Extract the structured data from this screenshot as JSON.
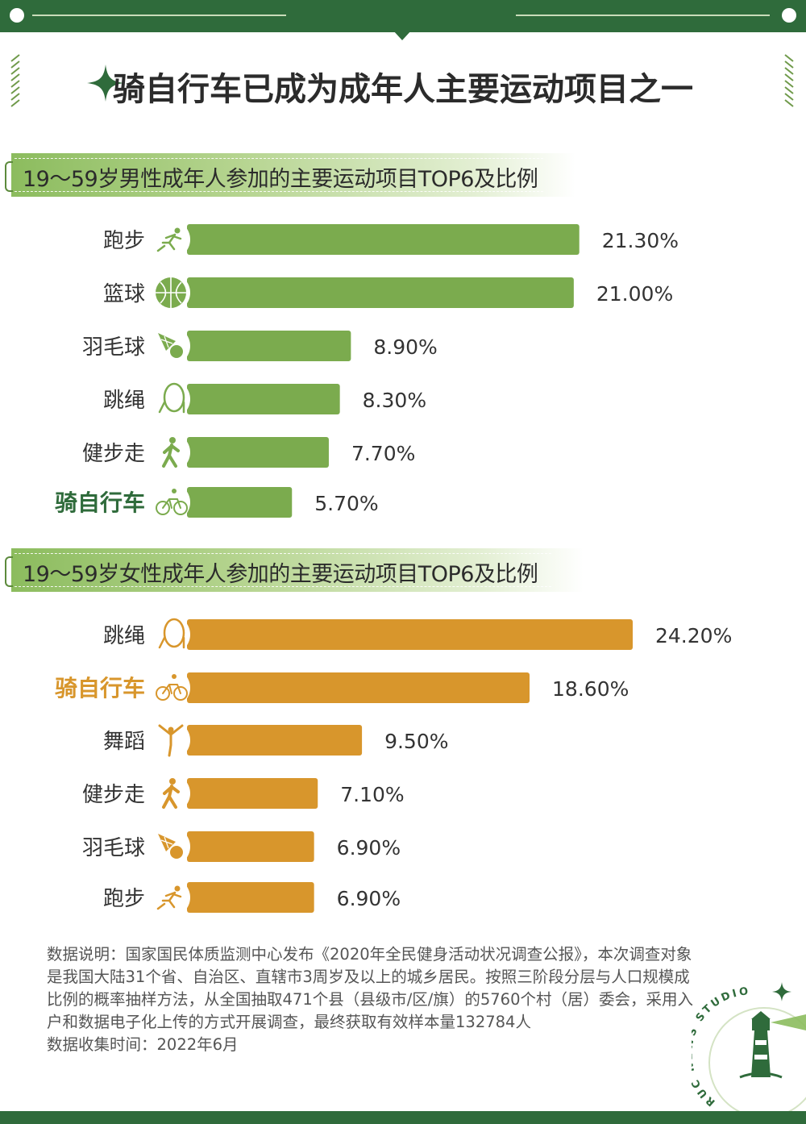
{
  "title": "骑自行车已成为成年人主要运动项目之一",
  "colors": {
    "male_bar": "#7bab4e",
    "female_bar": "#d8962c",
    "male_highlight_label": "#2f6b3b",
    "female_highlight_label": "#d8962c",
    "brand_green": "#2f6b3b"
  },
  "chart_data": [
    {
      "type": "bar",
      "orientation": "horizontal",
      "title": "19～59岁男性成年人参加的主要运动项目TOP6及比例",
      "categories": [
        "跑步",
        "篮球",
        "羽毛球",
        "跳绳",
        "健步走",
        "骑自行车"
      ],
      "icons": [
        "running-icon",
        "basketball-icon",
        "shuttlecock-icon",
        "jump-rope-icon",
        "walking-icon",
        "cycling-icon"
      ],
      "values": [
        21.3,
        21.0,
        8.9,
        8.3,
        7.7,
        5.7
      ],
      "value_labels": [
        "21.30%",
        "21.00%",
        "8.90%",
        "8.30%",
        "7.70%",
        "5.70%"
      ],
      "unit": "%",
      "highlight": "骑自行车",
      "xlim": [
        0,
        24.2
      ],
      "grid": false,
      "legend": "none"
    },
    {
      "type": "bar",
      "orientation": "horizontal",
      "title": "19～59岁女性成年人参加的主要运动项目TOP6及比例",
      "categories": [
        "跳绳",
        "骑自行车",
        "舞蹈",
        "健步走",
        "羽毛球",
        "跑步"
      ],
      "icons": [
        "jump-rope-icon",
        "cycling-icon",
        "dancing-icon",
        "walking-icon",
        "shuttlecock-icon",
        "running-icon"
      ],
      "values": [
        24.2,
        18.6,
        9.5,
        7.1,
        6.9,
        6.9
      ],
      "value_labels": [
        "24.20%",
        "18.60%",
        "9.50%",
        "7.10%",
        "6.90%",
        "6.90%"
      ],
      "unit": "%",
      "highlight": "骑自行车",
      "xlim": [
        0,
        24.2
      ],
      "grid": false,
      "legend": "none"
    }
  ],
  "footnote": {
    "description": "数据说明：国家国民体质监测中心发布《2020年全民健身活动状况调查公报》，本次调查对象是我国大陆31个省、自治区、直辖市3周岁及以上的城乡居民。按照三阶段分层与人口规模成比例的概率抽样方法，从全国抽取471个县（县级市/区/旗）的5760个村（居）委会，采用入户和数据电子化上传的方式开展调查，最终获取有效样本量132784人",
    "collection_time": "数据收集时间：2022年6月"
  },
  "logo": {
    "arc_text": "RUC NEWS STUDIO"
  }
}
